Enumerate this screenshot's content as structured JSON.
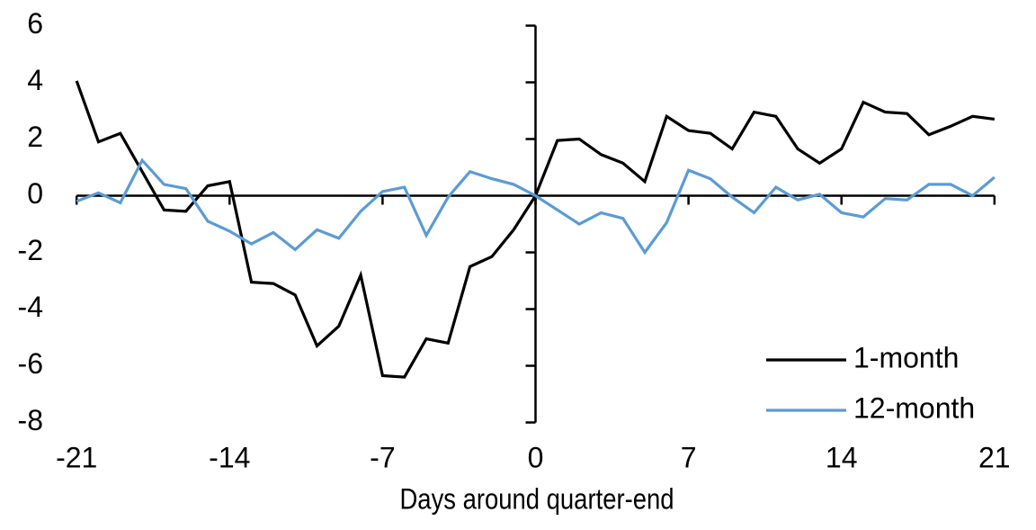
{
  "chart_data": {
    "type": "line",
    "title": "",
    "xlabel": "Days around quarter-end",
    "ylabel": "",
    "xlim": [
      -21,
      21
    ],
    "ylim": [
      -8,
      6
    ],
    "grid": false,
    "legend_position": "inside-bottom-right",
    "background_color": "#FFFFFF",
    "axis_color": "#000000",
    "x_ticks": [
      -21,
      -14,
      -7,
      0,
      7,
      14,
      21
    ],
    "y_ticks": [
      6,
      4,
      2,
      0,
      -2,
      -4,
      -6,
      -8
    ],
    "x": [
      -21,
      -20,
      -19,
      -18,
      -17,
      -16,
      -15,
      -14,
      -13,
      -12,
      -11,
      -10,
      -9,
      -8,
      -7,
      -6,
      -5,
      -4,
      -3,
      -2,
      -1,
      0,
      1,
      2,
      3,
      4,
      5,
      6,
      7,
      8,
      9,
      10,
      11,
      12,
      13,
      14,
      15,
      16,
      17,
      18,
      19,
      20,
      21
    ],
    "series": [
      {
        "name": "1-month",
        "color": "#000000",
        "values": [
          4.05,
          1.9,
          2.2,
          0.85,
          -0.5,
          -0.55,
          0.35,
          0.5,
          -3.05,
          -3.1,
          -3.5,
          -5.3,
          -4.6,
          -2.8,
          -6.35,
          -6.4,
          -5.05,
          -5.2,
          -2.5,
          -2.15,
          -1.2,
          0,
          1.95,
          2.0,
          1.45,
          1.15,
          0.5,
          2.8,
          2.3,
          2.2,
          1.65,
          2.95,
          2.8,
          1.65,
          1.15,
          1.65,
          3.3,
          2.95,
          2.9,
          2.15,
          2.45,
          2.8,
          2.7
        ]
      },
      {
        "name": "12-month",
        "color": "#5B9BD5",
        "values": [
          -0.2,
          0.1,
          -0.25,
          1.25,
          0.4,
          0.25,
          -0.9,
          -1.25,
          -1.7,
          -1.3,
          -1.9,
          -1.2,
          -1.5,
          -0.55,
          0.15,
          0.3,
          -1.4,
          -0.05,
          0.85,
          0.6,
          0.4,
          0,
          -0.5,
          -1.0,
          -0.6,
          -0.8,
          -2.0,
          -0.95,
          0.9,
          0.6,
          -0.05,
          -0.6,
          0.3,
          -0.15,
          0.05,
          -0.6,
          -0.75,
          -0.1,
          -0.15,
          0.4,
          0.4,
          0,
          0.65
        ]
      }
    ]
  }
}
